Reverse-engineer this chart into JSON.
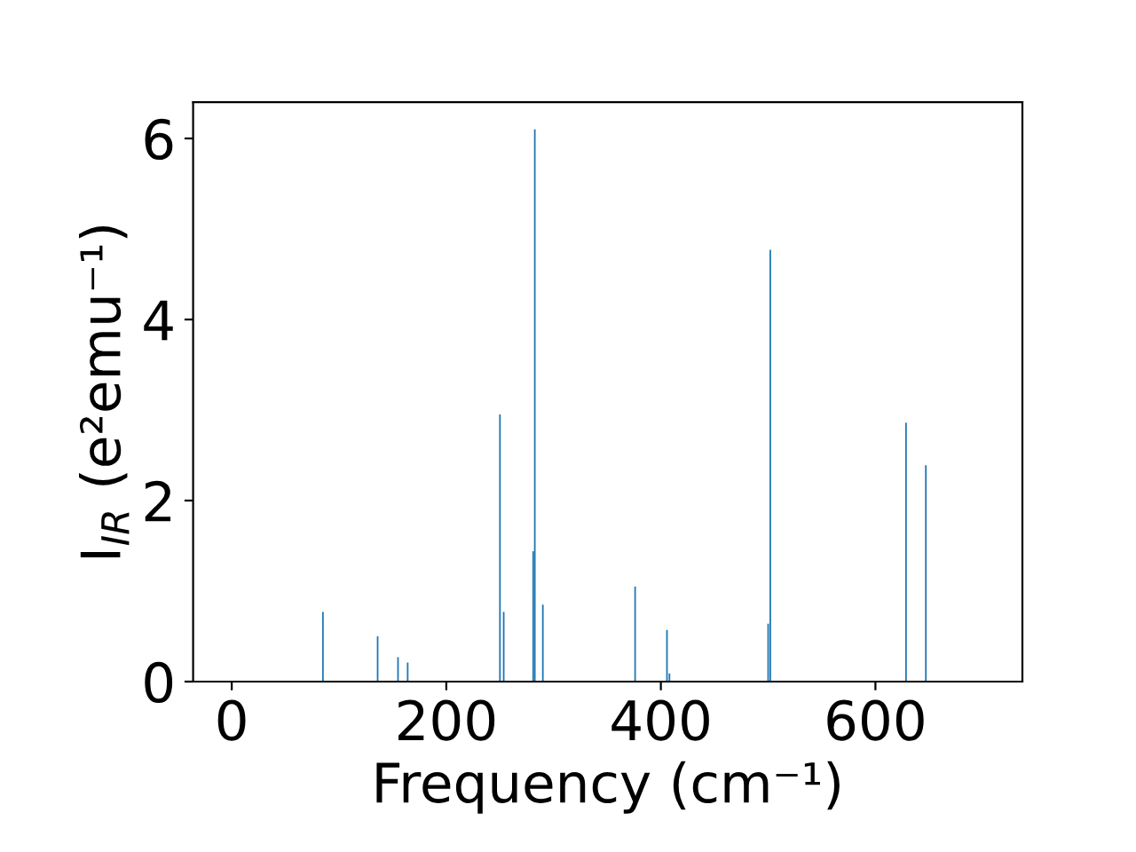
{
  "chart_data": {
    "type": "bar",
    "xlabel": "Frequency (cm⁻¹)",
    "ylabel": "I$_{IR}$ (e²emu⁻¹)",
    "color": "#1f77b4",
    "x": [
      85,
      136,
      147,
      155,
      164,
      237,
      250,
      253.5,
      281,
      282.5,
      290,
      376,
      405.7,
      408,
      500,
      502,
      628.5,
      647
    ],
    "values": [
      0.77,
      0.5,
      null,
      0.27,
      0.21,
      null,
      2.95,
      0.77,
      1.44,
      6.1,
      0.85,
      1.05,
      0.57,
      0.09,
      0.64,
      4.77,
      2.86,
      2.39
    ],
    "xlim": [
      -36,
      737
    ],
    "ylim": [
      0,
      6.4
    ],
    "xticks": [
      0,
      200,
      400,
      600
    ],
    "yticks": [
      0,
      2,
      4,
      6
    ],
    "grid": false
  }
}
